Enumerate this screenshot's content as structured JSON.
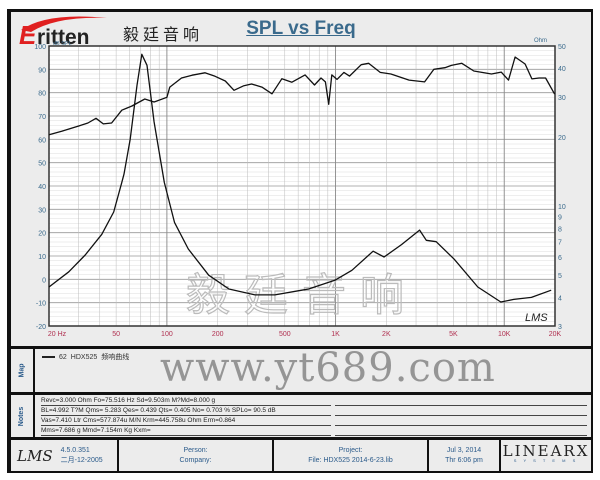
{
  "logo": {
    "brand": "ritten",
    "brand_initial": "E",
    "chinese": "毅廷音响"
  },
  "watermark": {
    "chinese": "毅廷音响",
    "url": "www.yt689.com"
  },
  "chart_data": {
    "type": "line",
    "title": "SPL vs Freq",
    "xscale": "log",
    "xlim": [
      20,
      20000
    ],
    "x_ticks": [
      "20  Hz",
      "50",
      "100",
      "200",
      "500",
      "1K",
      "2K",
      "5K",
      "10K",
      "20K"
    ],
    "x_tick_values": [
      20,
      50,
      100,
      200,
      500,
      1000,
      2000,
      5000,
      10000,
      20000
    ],
    "ylabel_left": "dB SPL",
    "ylim_left": [
      -20,
      100
    ],
    "y_ticks_left": [
      "100",
      "90",
      "80",
      "70",
      "60",
      "50",
      "40",
      "30",
      "20",
      "10",
      "0",
      "-10",
      "-20"
    ],
    "ylabel_right": "Ohm",
    "yscale_right": "log",
    "ylim_right": [
      3,
      50
    ],
    "y_ticks_right": [
      "50",
      "40",
      "30",
      "20",
      "10",
      "9",
      "8",
      "7",
      "6",
      "5",
      "4",
      "3"
    ],
    "grid": true,
    "series": [
      {
        "axis": "left",
        "unit": "dB",
        "points": [
          [
            20,
            62
          ],
          [
            23.8,
            63.5
          ],
          [
            30,
            65.7
          ],
          [
            34,
            67
          ],
          [
            38,
            69
          ],
          [
            42,
            66.6
          ],
          [
            47,
            67
          ],
          [
            54,
            72.5
          ],
          [
            62,
            74.3
          ],
          [
            74,
            77.3
          ],
          [
            84,
            76
          ],
          [
            100,
            78
          ],
          [
            104,
            82.4
          ],
          [
            122,
            86.3
          ],
          [
            141,
            87.5
          ],
          [
            168,
            88.5
          ],
          [
            193,
            87
          ],
          [
            222,
            85
          ],
          [
            250,
            81
          ],
          [
            286,
            83
          ],
          [
            318,
            83.7
          ],
          [
            366,
            82.4
          ],
          [
            420,
            79.5
          ],
          [
            481,
            86
          ],
          [
            551,
            84.5
          ],
          [
            660,
            87.6
          ],
          [
            750,
            83.3
          ],
          [
            820,
            86.3
          ],
          [
            870,
            84.6
          ],
          [
            910,
            75
          ],
          [
            950,
            87.6
          ],
          [
            1020,
            85.7
          ],
          [
            1120,
            88.7
          ],
          [
            1210,
            87.1
          ],
          [
            1420,
            92
          ],
          [
            1570,
            92.6
          ],
          [
            1840,
            88.7
          ],
          [
            2130,
            88
          ],
          [
            2730,
            85.4
          ],
          [
            3370,
            84.6
          ],
          [
            3830,
            90
          ],
          [
            4450,
            90.7
          ],
          [
            4860,
            91.7
          ],
          [
            5600,
            92.6
          ],
          [
            6600,
            89.3
          ],
          [
            8400,
            88
          ],
          [
            9600,
            88.8
          ],
          [
            10600,
            85.4
          ],
          [
            11600,
            95.3
          ],
          [
            13300,
            92.3
          ],
          [
            14600,
            85.9
          ],
          [
            16100,
            86.3
          ],
          [
            17600,
            86.3
          ],
          [
            19900,
            79.4
          ]
        ]
      },
      {
        "axis": "right",
        "unit": "Ohm",
        "points": [
          [
            20,
            4.44
          ],
          [
            26.2,
            5.17
          ],
          [
            32.8,
            6.12
          ],
          [
            41.1,
            7.54
          ],
          [
            48.4,
            9.43
          ],
          [
            54,
            12.7
          ],
          [
            55.7,
            13.8
          ],
          [
            60.6,
            19.6
          ],
          [
            66.5,
            33.7
          ],
          [
            71,
            46
          ],
          [
            76.2,
            41.2
          ],
          [
            84,
            23.3
          ],
          [
            96.5,
            12.7
          ],
          [
            111,
            8.5
          ],
          [
            134,
            6.5
          ],
          [
            177,
            5.0
          ],
          [
            233,
            4.35
          ],
          [
            333,
            4.1
          ],
          [
            437,
            4.1
          ],
          [
            630,
            4.3
          ],
          [
            692,
            4.35
          ],
          [
            990,
            4.75
          ],
          [
            1250,
            5.25
          ],
          [
            1670,
            6.36
          ],
          [
            1940,
            6.0
          ],
          [
            2460,
            6.8
          ],
          [
            3150,
            7.86
          ],
          [
            3450,
            7.1
          ],
          [
            3950,
            7.0
          ],
          [
            5050,
            5.87
          ],
          [
            6970,
            4.44
          ],
          [
            9540,
            3.82
          ],
          [
            11400,
            3.92
          ],
          [
            14500,
            4.0
          ],
          [
            19000,
            4.3
          ]
        ]
      }
    ],
    "line_color": "#111111",
    "tick_color_left": "#3a6a8c",
    "tick_color_x": "#b03050"
  },
  "plot_stamp": "LMS",
  "map": {
    "label": "Map",
    "legend": {
      "number": "62",
      "name": "HDX525",
      "desc": "频响曲线"
    }
  },
  "notes": {
    "label": "Notes",
    "lines": [
      "Revc=3.000 Ohm  Fo=75.516 Hz  Sd=9.503m M?Md=8.000 g",
      "BL=4.992 T?M  Qms= 5.283  Qes= 0.439  Qts= 0.405  No= 0.703 %  SPLo= 90.5 dB",
      "Vas=7.410 Ltr  Cms=577.874u M/N  Krm=445.758u Ohm  Erm=0.864",
      "Mms=7.686 g  Mmd=7.154m Kg  Kxm="
    ]
  },
  "footer": {
    "lms": "LMS",
    "version": "4.5.0.351",
    "date_build": "二月-12-2005",
    "person": "Person:",
    "company": "Company:",
    "project": "Project:",
    "file": "File: HDX525    2014-6-23.lib",
    "date": "Jul  3, 2014",
    "time": "Thr  6:06 pm",
    "brand": "LINEARX",
    "brand_sub": "S Y S T E M S"
  }
}
